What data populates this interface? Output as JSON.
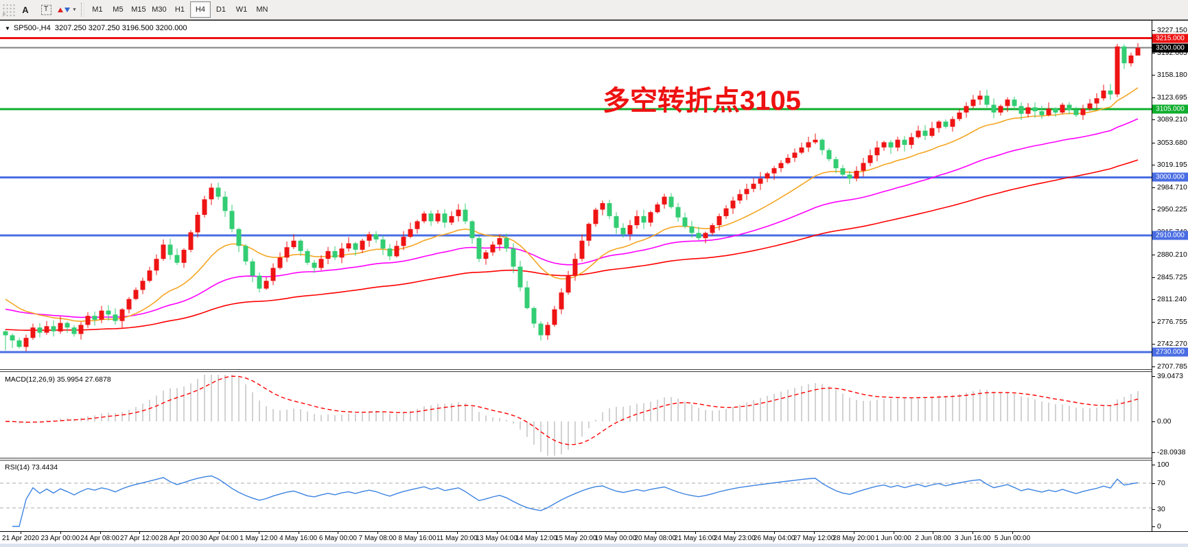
{
  "toolbar": {
    "grip_label": "F",
    "tool_buttons": [
      {
        "id": "arrow-tool",
        "label": "A"
      },
      {
        "id": "text-tool",
        "label": "T"
      }
    ],
    "arrows_tool_caret": "▼",
    "timeframes": [
      "M1",
      "M5",
      "M15",
      "M30",
      "H1",
      "H4",
      "D1",
      "W1",
      "MN"
    ],
    "active_timeframe": "H4"
  },
  "chart": {
    "title": {
      "expander": "▼",
      "symbol_period": "SP500-,H4",
      "ohlc": "3207.250 3207.250 3196.500 3200.000"
    },
    "annotation": {
      "text": "多空转折点3105",
      "color": "#ee1111"
    },
    "price_ticks": [
      "3227.150",
      "3192.665",
      "3158.180",
      "3123.695",
      "3089.210",
      "3053.680",
      "3019.195",
      "2984.710",
      "2950.225",
      "2915.740",
      "2880.210",
      "2845.725",
      "2811.240",
      "2776.755",
      "2742.270",
      "2707.785"
    ],
    "time_labels": [
      "21 Apr 2020",
      "23 Apr 00:00",
      "24 Apr 08:00",
      "27 Apr 12:00",
      "28 Apr 20:00",
      "30 Apr 04:00",
      "1 May 12:00",
      "4 May 16:00",
      "6 May 00:00",
      "7 May 08:00",
      "8 May 16:00",
      "11 May 20:00",
      "13 May 04:00",
      "14 May 12:00",
      "15 May 20:00",
      "19 May 00:00",
      "20 May 08:00",
      "21 May 16:00",
      "24 May 23:00",
      "26 May 04:00",
      "27 May 12:00",
      "28 May 20:00",
      "1 Jun 00:00",
      "2 Jun 08:00",
      "3 Jun 16:00",
      "5 Jun 00:00"
    ],
    "current_price": {
      "label": "3200.000",
      "price": 3200.0,
      "badge_color": "#000000",
      "line_color": "#808080"
    },
    "key_levels": [
      {
        "label": "3215.000",
        "price": 3215.0,
        "color": "#ee1111"
      },
      {
        "label": "3105.000",
        "price": 3105.0,
        "color": "#0fae2e"
      },
      {
        "label": "3000.000",
        "price": 3000.0,
        "color": "#4a6de3"
      },
      {
        "label": "2910.000",
        "price": 2910.0,
        "color": "#4a6de3"
      },
      {
        "label": "2730.000",
        "price": 2730.0,
        "color": "#4a6de3"
      }
    ]
  },
  "macd": {
    "label": "MACD(12,26,9) 35.9954 27.6878",
    "params": [
      12,
      26,
      9
    ],
    "value": "35.9954",
    "signal_value": "27.6878",
    "axis_labels": [
      "39.0473",
      "0.00",
      "-28.0938"
    ],
    "histogram_color": "#c6c6c6",
    "signal_color": "#ff0000"
  },
  "rsi": {
    "label": "RSI(14) 73.4434",
    "period": 14,
    "value": "73.4434",
    "axis_labels": [
      "100",
      "70",
      "30",
      "0"
    ],
    "levels": [
      70,
      30
    ],
    "line_color": "#3b82e0"
  },
  "chart_data": {
    "type": "candlestick",
    "symbol": "SP500-",
    "timeframe": "H4",
    "price_axis_range": [
      2707.785,
      3227.15
    ],
    "up_color": "#ee1414",
    "down_color": "#33cd73",
    "ma_fast_color": "#f5a623",
    "ma_mid_color": "#ff00ff",
    "ma_slow_color": "#ff0000",
    "macd_axis_range": [
      -28.0938,
      39.0473
    ],
    "rsi_axis_range": [
      0,
      100
    ],
    "closes": [
      2756,
      2748,
      2738,
      2752,
      2768,
      2760,
      2770,
      2762,
      2775,
      2768,
      2758,
      2772,
      2786,
      2780,
      2794,
      2788,
      2778,
      2796,
      2812,
      2826,
      2840,
      2856,
      2874,
      2896,
      2880,
      2868,
      2888,
      2915,
      2942,
      2966,
      2984,
      2970,
      2948,
      2920,
      2894,
      2870,
      2848,
      2828,
      2840,
      2860,
      2876,
      2892,
      2902,
      2886,
      2868,
      2860,
      2874,
      2886,
      2876,
      2890,
      2898,
      2888,
      2902,
      2912,
      2904,
      2890,
      2878,
      2894,
      2908,
      2920,
      2932,
      2944,
      2932,
      2944,
      2930,
      2940,
      2950,
      2932,
      2906,
      2874,
      2884,
      2896,
      2906,
      2890,
      2862,
      2830,
      2798,
      2774,
      2756,
      2772,
      2796,
      2822,
      2848,
      2874,
      2902,
      2928,
      2950,
      2960,
      2940,
      2922,
      2912,
      2926,
      2940,
      2930,
      2946,
      2958,
      2970,
      2954,
      2938,
      2924,
      2914,
      2906,
      2914,
      2926,
      2940,
      2952,
      2964,
      2974,
      2982,
      2990,
      2998,
      3006,
      3014,
      3022,
      3030,
      3038,
      3046,
      3054,
      3058,
      3042,
      3028,
      3014,
      3004,
      2998,
      3010,
      3022,
      3034,
      3046,
      3054,
      3046,
      3058,
      3050,
      3062,
      3072,
      3064,
      3076,
      3086,
      3078,
      3090,
      3100,
      3110,
      3120,
      3126,
      3112,
      3100,
      3110,
      3120,
      3110,
      3098,
      3108,
      3102,
      3096,
      3106,
      3100,
      3112,
      3104,
      3096,
      3106,
      3114,
      3122,
      3134,
      3128,
      3202,
      3176,
      3188,
      3200
    ]
  }
}
